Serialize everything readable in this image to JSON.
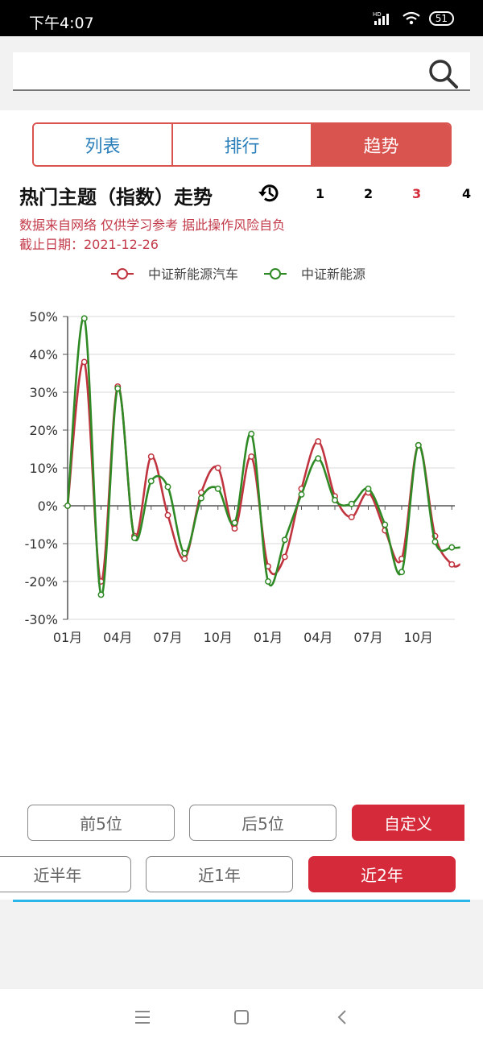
{
  "status": {
    "time": "下午4:07",
    "battery": "51",
    "hd": "HD"
  },
  "search": {
    "value": "",
    "placeholder": ""
  },
  "tabs": [
    {
      "label": "列表",
      "active": false
    },
    {
      "label": "排行",
      "active": false
    },
    {
      "label": "趋势",
      "active": true
    }
  ],
  "header": {
    "title": "热门主题（指数）走势",
    "pages": [
      "1",
      "2",
      "3",
      "4"
    ],
    "active_page": "3"
  },
  "disclaimer": {
    "line1": "数据来自网络 仅供学习参考 据此操作风险自负",
    "line2": "截止日期：2021-12-26"
  },
  "colors": {
    "accent": "#d42a3a",
    "tab_accent": "#d9534f",
    "series_red": "#c0343f",
    "series_green": "#2f8a26",
    "tab_text": "#2a7fba"
  },
  "chart_data": {
    "type": "line",
    "title": "",
    "xlabel": "",
    "ylabel": "",
    "ylim": [
      -30,
      50
    ],
    "yticks": [
      "50%",
      "40%",
      "30%",
      "20%",
      "10%",
      "0%",
      "-10%",
      "-20%",
      "-30%"
    ],
    "xticks": [
      {
        "label": "01月",
        "index": 0
      },
      {
        "label": "04月",
        "index": 3
      },
      {
        "label": "07月",
        "index": 6
      },
      {
        "label": "10月",
        "index": 9
      },
      {
        "label": "01月",
        "index": 12
      },
      {
        "label": "04月",
        "index": 15
      },
      {
        "label": "07月",
        "index": 18
      },
      {
        "label": "10月",
        "index": 21
      }
    ],
    "x": [
      0,
      1,
      2,
      3,
      4,
      5,
      6,
      7,
      8,
      9,
      10,
      11,
      12,
      13,
      14,
      15,
      16,
      17,
      18,
      19,
      20,
      21,
      22,
      23,
      23.5
    ],
    "series": [
      {
        "name": "中证新能源汽车",
        "color": "#c0343f",
        "values": [
          0,
          38,
          -20,
          31.5,
          -8,
          13,
          -2.5,
          -14,
          3.5,
          10,
          -6,
          13,
          -16,
          -13.5,
          4.5,
          17,
          2.5,
          -3,
          3.5,
          -6.5,
          -14,
          16,
          -8,
          -15.5,
          -15.5
        ]
      },
      {
        "name": "中证新能源",
        "color": "#2f8a26",
        "values": [
          0,
          49.5,
          -23.5,
          31,
          -8.5,
          6.5,
          5,
          -12.5,
          2,
          4.5,
          -4.5,
          19,
          -20,
          -9,
          3,
          12.5,
          1.5,
          0.5,
          4.5,
          -5,
          -17.5,
          16,
          -9.5,
          -11,
          -11
        ]
      }
    ],
    "legend_position": "top-center"
  },
  "filters": {
    "row1": [
      {
        "label": "前5位",
        "active": false
      },
      {
        "label": "后5位",
        "active": false
      },
      {
        "label": "自定义",
        "active": true
      }
    ],
    "row2": [
      {
        "label": "近半年",
        "active": false
      },
      {
        "label": "近1年",
        "active": false
      },
      {
        "label": "近2年",
        "active": true
      }
    ]
  }
}
